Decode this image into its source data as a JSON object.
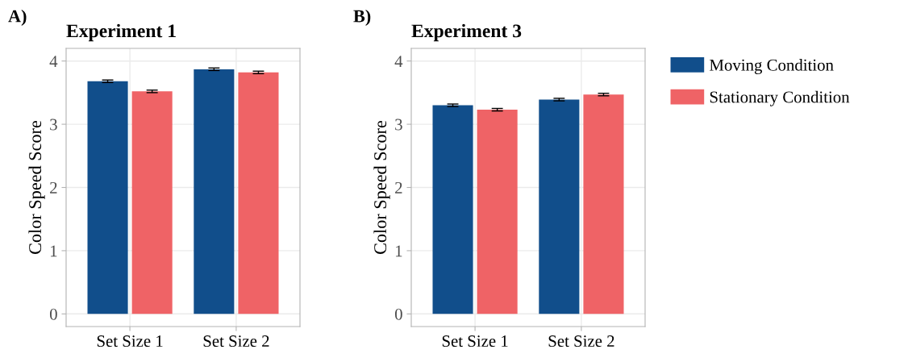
{
  "chart_data": [
    {
      "type": "bar",
      "title": "Experiment 1",
      "annotations": [
        "A)"
      ],
      "ylabel": "Color Speed Score",
      "categories": [
        "Set Size 1",
        "Set Size 2"
      ],
      "series": [
        {
          "color": "#114e8b",
          "values": [
            3.68,
            3.87
          ],
          "errors": [
            0.02,
            0.02
          ]
        },
        {
          "color": "#ef6366",
          "values": [
            3.52,
            3.82
          ],
          "errors": [
            0.02,
            0.02
          ]
        }
      ],
      "ylim": [
        -0.2,
        4.2
      ],
      "yticks": [
        0,
        1,
        2,
        3,
        4
      ],
      "grid": true,
      "legend": false
    },
    {
      "type": "bar",
      "title": "Experiment 3",
      "annotations": [
        "B)"
      ],
      "ylabel": "Color Speed Score",
      "categories": [
        "Set Size 1",
        "Set Size 2"
      ],
      "series": [
        {
          "name": "Moving Condition",
          "color": "#114e8b",
          "values": [
            3.3,
            3.39
          ],
          "errors": [
            0.02,
            0.02
          ]
        },
        {
          "name": "Stationary Condition",
          "color": "#ef6366",
          "values": [
            3.23,
            3.47
          ],
          "errors": [
            0.02,
            0.02
          ]
        }
      ],
      "ylim": [
        -0.2,
        4.2
      ],
      "yticks": [
        0,
        1,
        2,
        3,
        4
      ],
      "grid": true,
      "legend": "right"
    }
  ]
}
